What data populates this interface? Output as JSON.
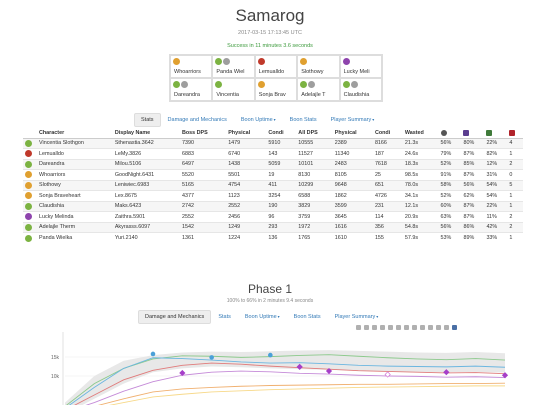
{
  "header": {
    "title": "Samarog",
    "datetime": "2017-03-15 17:13:45 UTC",
    "success": "Success in 11 minutes 3.6 seconds"
  },
  "squad": [
    {
      "name": "Whoarriors",
      "colors": [
        "#e0a030"
      ]
    },
    {
      "name": "Panda Wiel",
      "colors": [
        "#7cb342",
        "#9e9e9e"
      ]
    },
    {
      "name": "Lemualldo",
      "colors": [
        "#c0392b"
      ]
    },
    {
      "name": "Slothowy",
      "colors": [
        "#e0a030"
      ]
    },
    {
      "name": "Lucky Meli",
      "colors": [
        "#8e44ad"
      ]
    },
    {
      "name": "Dareandra",
      "colors": [
        "#7cb342",
        "#9e9e9e"
      ]
    },
    {
      "name": "Vincentia",
      "colors": [
        "#7cb342"
      ]
    },
    {
      "name": "Sonja Brav",
      "colors": [
        "#e0a030"
      ]
    },
    {
      "name": "Adelajle T",
      "colors": [
        "#7cb342",
        "#9e9e9e"
      ]
    },
    {
      "name": "Claudishia",
      "colors": [
        "#7cb342",
        "#9e9e9e"
      ]
    }
  ],
  "tabs_top": [
    {
      "label": "Stats",
      "active": true,
      "dropdown": false
    },
    {
      "label": "Damage and Mechanics",
      "active": false,
      "dropdown": false
    },
    {
      "label": "Boon Uptime",
      "active": false,
      "dropdown": true
    },
    {
      "label": "Boon Stats",
      "active": false,
      "dropdown": false
    },
    {
      "label": "Player Summary",
      "active": false,
      "dropdown": true
    }
  ],
  "stats_table": {
    "columns": [
      "",
      "Character",
      "Display Name",
      "Boss DPS",
      "Physical",
      "Condi",
      "All DPS",
      "Physical",
      "Condi",
      "Wasted"
    ],
    "icon_columns": [
      {
        "name": "target-icon",
        "color": "#555"
      },
      {
        "name": "swirl-icon",
        "color": "#5b3d8f"
      },
      {
        "name": "clover-icon",
        "color": "#3f7a3a"
      },
      {
        "name": "heart-icon",
        "color": "#b0232a"
      }
    ],
    "rows": [
      {
        "color": "#7cb342",
        "char": "Vincentia Slothgon",
        "display": "Sthenastia.3642",
        "boss": "7390",
        "phys": "1479",
        "condi": "5910",
        "all": "10555",
        "aphys": "2389",
        "acondi": "8166",
        "wasted": "21.3s",
        "c1": "56%",
        "c2": "80%",
        "c3": "22%",
        "c4": "4"
      },
      {
        "color": "#c0392b",
        "char": "Lemualldo",
        "display": "LeMy.3826",
        "boss": "6883",
        "phys": "6740",
        "condi": "143",
        "all": "11527",
        "aphys": "11340",
        "acondi": "187",
        "wasted": "24.6s",
        "c1": "79%",
        "c2": "87%",
        "c3": "82%",
        "c4": "1"
      },
      {
        "color": "#7cb342",
        "char": "Dareandra",
        "display": "Milou.5106",
        "boss": "6497",
        "phys": "1438",
        "condi": "5059",
        "all": "10101",
        "aphys": "2483",
        "acondi": "7618",
        "wasted": "18.3s",
        "c1": "52%",
        "c2": "85%",
        "c3": "12%",
        "c4": "2"
      },
      {
        "color": "#e0a030",
        "char": "Whoarriors",
        "display": "GoodNight.6431",
        "boss": "5520",
        "phys": "5501",
        "condi": "19",
        "all": "8130",
        "aphys": "8105",
        "acondi": "25",
        "wasted": "98.5s",
        "c1": "91%",
        "c2": "87%",
        "c3": "31%",
        "c4": "0"
      },
      {
        "color": "#e0a030",
        "char": "Slothowy",
        "display": "Leniwiec.6983",
        "boss": "5165",
        "phys": "4754",
        "condi": "411",
        "all": "10299",
        "aphys": "9648",
        "acondi": "651",
        "wasted": "78.0s",
        "c1": "58%",
        "c2": "56%",
        "c3": "54%",
        "c4": "5"
      },
      {
        "color": "#e0a030",
        "char": "Sonja Braveheart",
        "display": "Lex.8675",
        "boss": "4377",
        "phys": "1123",
        "condi": "3254",
        "all": "6588",
        "aphys": "1862",
        "acondi": "4726",
        "wasted": "34.1s",
        "c1": "52%",
        "c2": "62%",
        "c3": "54%",
        "c4": "1"
      },
      {
        "color": "#7cb342",
        "char": "Claudishia",
        "display": "Maks.6423",
        "boss": "2742",
        "phys": "2552",
        "condi": "190",
        "all": "3829",
        "aphys": "3599",
        "acondi": "231",
        "wasted": "12.1s",
        "c1": "60%",
        "c2": "87%",
        "c3": "22%",
        "c4": "1"
      },
      {
        "color": "#8e44ad",
        "char": "Lucky Melinda",
        "display": "Zaithra.5901",
        "boss": "2552",
        "phys": "2456",
        "condi": "96",
        "all": "3759",
        "aphys": "3645",
        "acondi": "114",
        "wasted": "20.9s",
        "c1": "63%",
        "c2": "87%",
        "c3": "11%",
        "c4": "2"
      },
      {
        "color": "#7cb342",
        "char": "Adelajle Therm",
        "display": "Akyrasss.6097",
        "boss": "1542",
        "phys": "1249",
        "condi": "293",
        "all": "1972",
        "aphys": "1616",
        "acondi": "356",
        "wasted": "54.8s",
        "c1": "56%",
        "c2": "86%",
        "c3": "42%",
        "c4": "2"
      },
      {
        "color": "#7cb342",
        "char": "Panda Wielka",
        "display": "Yuri.2140",
        "boss": "1361",
        "phys": "1224",
        "condi": "136",
        "all": "1765",
        "aphys": "1610",
        "acondi": "155",
        "wasted": "57.9s",
        "c1": "53%",
        "c2": "89%",
        "c3": "33%",
        "c4": "1"
      }
    ]
  },
  "phase": {
    "title": "Phase 1",
    "subtitle": "100% to 66% in 2 minutes 9.4 seconds"
  },
  "tabs_phase": [
    {
      "label": "Damage and Mechanics",
      "active": true,
      "dropdown": false
    },
    {
      "label": "Stats",
      "active": false,
      "dropdown": false
    },
    {
      "label": "Boon Uptime",
      "active": false,
      "dropdown": true
    },
    {
      "label": "Boon Stats",
      "active": false,
      "dropdown": false
    },
    {
      "label": "Player Summary",
      "active": false,
      "dropdown": true
    }
  ],
  "chart_data": {
    "type": "line",
    "y_ticks": [
      "15k",
      "10k"
    ],
    "series": [
      {
        "color": "#8bc98b",
        "values": [
          2,
          8,
          12,
          14.5,
          15.3,
          15.2,
          14.9,
          15.1,
          15.4,
          15.6,
          15.2,
          14.8,
          14.5,
          14.3,
          14.6,
          14.2
        ]
      },
      {
        "color": "#e07b7b",
        "values": [
          1,
          5,
          9,
          11.5,
          12.8,
          13.4,
          13.1,
          12.6,
          12.2,
          11.8,
          11.4,
          11.2,
          11.0,
          10.8,
          10.9,
          10.6
        ]
      },
      {
        "color": "#6bb6e0",
        "values": [
          1.5,
          7,
          12,
          14.8,
          14.6,
          14.2,
          13.7,
          13.4,
          13.5,
          13.2,
          12.8,
          12.6,
          12.5,
          12.4,
          12.6,
          12.3
        ]
      },
      {
        "color": "#c58bd8",
        "values": [
          0.5,
          3,
          6,
          8.5,
          10.2,
          11.0,
          11.3,
          11.1,
          10.7,
          10.5,
          10.2,
          10.0,
          9.9,
          9.7,
          9.8,
          9.6
        ]
      },
      {
        "color": "#f0b070",
        "values": [
          0.2,
          2,
          4,
          5.8,
          6.6,
          7.0,
          7.3,
          7.5,
          7.6,
          7.7,
          7.8,
          7.8,
          7.9,
          8.0,
          8.0,
          8.1
        ]
      },
      {
        "color": "#f7d98a",
        "values": [
          0.1,
          1.5,
          3,
          4.5,
          5.2,
          5.8,
          6.1,
          6.4,
          6.6,
          6.8,
          7.0,
          7.1,
          7.2,
          7.3,
          7.4,
          7.4
        ]
      }
    ],
    "band": {
      "upper": [
        3,
        10,
        14,
        15.5,
        16.2,
        16.4,
        16.3,
        16.5,
        16.7,
        16.8,
        16.6,
        16.4,
        16.2,
        16.1,
        16.3,
        16.0
      ],
      "lower": [
        0,
        4,
        8,
        11,
        12,
        12.5,
        12.3,
        12.0,
        11.8,
        11.6,
        11.4,
        11.2,
        11.1,
        11.0,
        11.1,
        10.9
      ]
    },
    "markers": [
      {
        "x": 3,
        "y": 15.8,
        "color": "#4aa0d8",
        "shape": "circle"
      },
      {
        "x": 5,
        "y": 14.9,
        "color": "#4aa0d8",
        "shape": "circle"
      },
      {
        "x": 7,
        "y": 15.5,
        "color": "#4aa0d8",
        "shape": "circle"
      },
      {
        "x": 8,
        "y": 12.4,
        "color": "#a63fc9",
        "shape": "diamond"
      },
      {
        "x": 9,
        "y": 11.3,
        "color": "#a63fc9",
        "shape": "diamond"
      },
      {
        "x": 11,
        "y": 10.4,
        "color": "#d47ad8",
        "shape": "diamond-open"
      },
      {
        "x": 13,
        "y": 11.0,
        "color": "#a63fc9",
        "shape": "diamond"
      },
      {
        "x": 15,
        "y": 10.2,
        "color": "#a63fc9",
        "shape": "diamond"
      },
      {
        "x": 4,
        "y": 10.8,
        "color": "#a63fc9",
        "shape": "diamond"
      }
    ]
  }
}
